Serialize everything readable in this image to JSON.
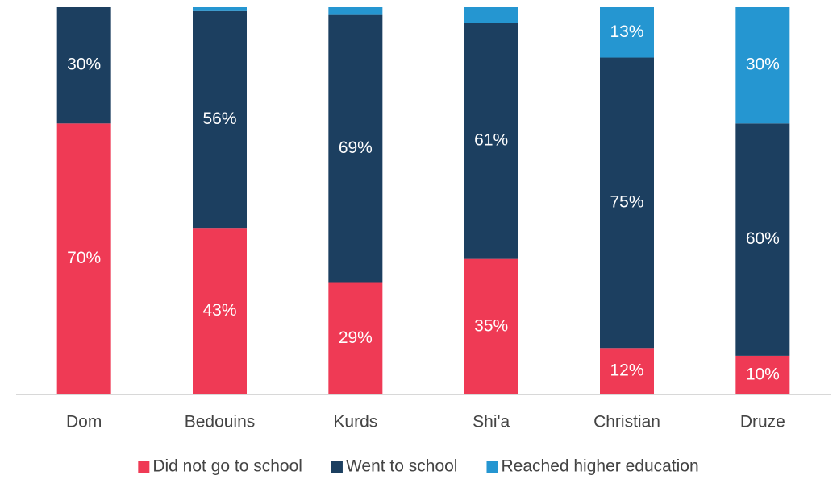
{
  "chart_data": {
    "type": "stacked_bar",
    "categories": [
      "Dom",
      "Bedouins",
      "Kurds",
      "Shi'a",
      "Christian",
      "Druze"
    ],
    "series": [
      {
        "name": "Did not go to school",
        "color": "#ef3a55",
        "values": [
          70,
          43,
          29,
          35,
          12,
          10
        ],
        "value_labels": [
          "70%",
          "43%",
          "29%",
          "35%",
          "12%",
          "10%"
        ]
      },
      {
        "name": "Went to school",
        "color": "#1c3f60",
        "values": [
          30,
          56,
          69,
          61,
          75,
          60
        ],
        "value_labels": [
          "30%",
          "56%",
          "69%",
          "61%",
          "75%",
          "60%"
        ]
      },
      {
        "name": "Reached higher education",
        "color": "#2596d1",
        "values": [
          0,
          1,
          2,
          4,
          13,
          30
        ],
        "value_labels": [
          null,
          null,
          null,
          null,
          "13%",
          "30%"
        ]
      }
    ],
    "ylim": [
      0,
      100
    ],
    "legend": "bottom"
  }
}
